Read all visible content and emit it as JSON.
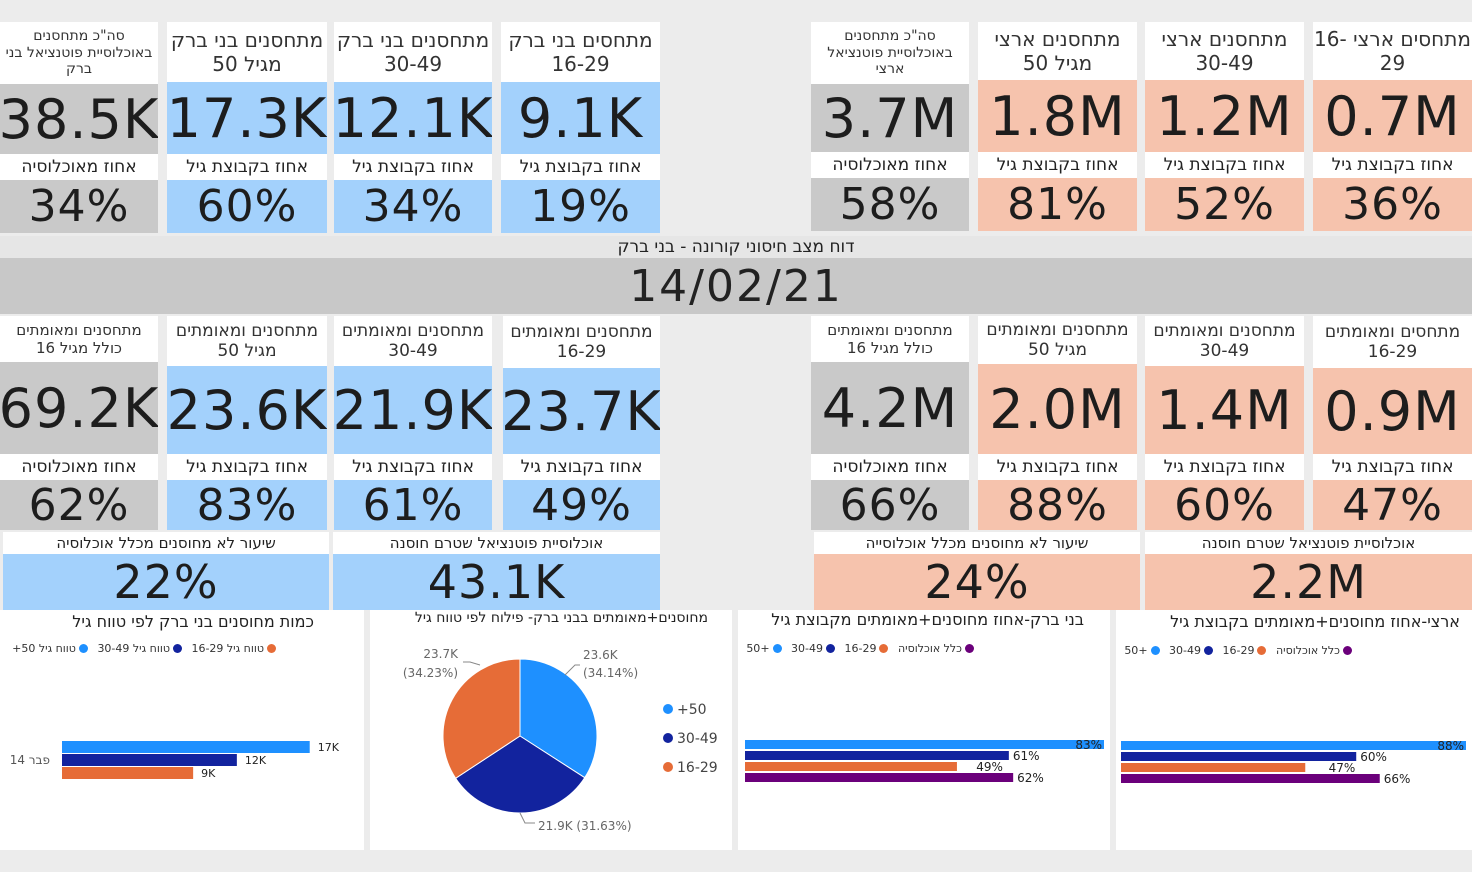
{
  "colors": {
    "blue": "#a3d1fc",
    "grey": "#c9c9c9",
    "peach": "#f6c3ad",
    "c50": "#1e90ff",
    "c30": "#12239e",
    "c16": "#e66c37",
    "call": "#6b007b"
  },
  "top": {
    "bb": [
      {
        "id": "bb-total",
        "label": "סה\"כ מתחסנים באוכלוסיית פוטנציאל בני ברק",
        "value": "38.5K",
        "sub": "אחוז מאוכלוסיה",
        "pct": "34%"
      },
      {
        "id": "bb-50",
        "label": "מתחסנים בני ברק מגיל 50",
        "value": "17.3K",
        "sub": "אחוז בקבוצת גיל",
        "pct": "60%"
      },
      {
        "id": "bb-30",
        "label": "מתחסנים בני ברק 30-49",
        "value": "12.1K",
        "sub": "אחוז בקבוצת גיל",
        "pct": "34%"
      },
      {
        "id": "bb-16",
        "label": "מתחסים בני ברק 16-29",
        "value": "9.1K",
        "sub": "אחוז בקבוצת גיל",
        "pct": "19%"
      }
    ],
    "il": [
      {
        "id": "il-total",
        "label": "סה\"כ מתחסנים באוכלוסיית פוטנציאל ארצי",
        "value": "3.7M",
        "sub": "אחוז מאוכלוסיה",
        "pct": "58%"
      },
      {
        "id": "il-50",
        "label": "מתחסנים ארצי מגיל 50",
        "value": "1.8M",
        "sub": "אחוז בקבוצת גיל",
        "pct": "81%"
      },
      {
        "id": "il-30",
        "label": "מתחסנים ארצי 30-49",
        "value": "1.2M",
        "sub": "אחוז בקבוצת גיל",
        "pct": "52%"
      },
      {
        "id": "il-16",
        "label": "מתחסים ארצי 16-29",
        "value": "0.7M",
        "sub": "אחוז בקבוצת גיל",
        "pct": "36%"
      }
    ]
  },
  "header": {
    "title": "דוח מצב חיסוני קורונה - בני ברק",
    "date": "14/02/21"
  },
  "mid": {
    "bb": [
      {
        "id": "bb-vr-total",
        "label": "מתחסנים ומאומתים כולל מגיל 16",
        "value": "69.2K",
        "sub": "אחוז מאוכלוסיה",
        "pct": "62%"
      },
      {
        "id": "bb-vr-50",
        "label": "מתחסנים ומאומתים מגיל 50",
        "value": "23.6K",
        "sub": "אחוז בקבוצת גיל",
        "pct": "83%"
      },
      {
        "id": "bb-vr-30",
        "label": "מתחסנים ומאומתים 30-49",
        "value": "21.9K",
        "sub": "אחוז בקבוצת גיל",
        "pct": "61%"
      },
      {
        "id": "bb-vr-16",
        "label": "מתחסנים ומאומתים 16-29",
        "value": "23.7K",
        "sub": "אחוז בקבוצת גיל",
        "pct": "49%"
      }
    ],
    "il": [
      {
        "id": "il-vr-total",
        "label": "מתחסנים ומאומתים כולל מגיל 16",
        "value": "4.2M",
        "sub": "אחוז מאוכלוסיה",
        "pct": "66%"
      },
      {
        "id": "il-vr-50",
        "label": "מתחסנים ומאומתים מגיל 50",
        "value": "2.0M",
        "sub": "אחוז בקבוצת גיל",
        "pct": "88%"
      },
      {
        "id": "il-vr-30",
        "label": "מתחסנים ומאומתים 30-49",
        "value": "1.4M",
        "sub": "אחוז בקבוצת גיל",
        "pct": "60%"
      },
      {
        "id": "il-vr-16",
        "label": "מתחסים ומאומתים 16-29",
        "value": "0.9M",
        "sub": "אחוז בקבוצת גיל",
        "pct": "47%"
      }
    ]
  },
  "summary": {
    "bb_unvax_label": "שיעור לא מחוסנים מכלל אוכלוסיה",
    "bb_unvax": "22%",
    "bb_potential_label": "אוכלוסיית פוטנציאל שטרם חוסנה",
    "bb_potential": "43.1K",
    "il_unvax_label": "שיעור לא מחוסנים מכלל אוכלוסייה",
    "il_unvax": "24%",
    "il_potential_label": "אוכלוסיית פוטנציאל שטרם חוסנה",
    "il_potential": "2.2M"
  },
  "chart_data": [
    {
      "type": "bar",
      "title": "כמות מחוסנים בני ברק לפי טווח גיל",
      "categories": [
        "פבר 14"
      ],
      "legend": [
        "טווח גיל 16-29",
        "טווח גיל 30-49",
        "טווח גיל 50+"
      ],
      "series": [
        {
          "name": "50+",
          "values": [
            17
          ]
        },
        {
          "name": "30-49",
          "values": [
            12
          ]
        },
        {
          "name": "16-29",
          "values": [
            9
          ]
        }
      ],
      "labels": [
        "17K",
        "12K",
        "9K"
      ],
      "xlim": [
        0,
        17.5
      ]
    },
    {
      "type": "pie",
      "title": "מחוסנים+מאומתים בבני ברק- פילוח לפי טווח גיל",
      "slices": [
        {
          "name": "+50",
          "value": 23.6,
          "label": "23.6K",
          "pct": "(34.14%)"
        },
        {
          "name": "30-49",
          "value": 21.9,
          "label": "21.9K (31.63%)",
          "pct": ""
        },
        {
          "name": "16-29",
          "value": 23.7,
          "label": "23.7K",
          "pct": "(34.23%)"
        }
      ],
      "legend": [
        "+50",
        "30-49",
        "16-29"
      ]
    },
    {
      "type": "bar",
      "title": "בני ברק-אחוז מחוסנים+מאומתים מקבוצת גיל",
      "legend": [
        "כלל אוכלוסיה",
        "16-29",
        "30-49",
        "+50"
      ],
      "series": [
        {
          "name": "+50",
          "values": [
            83
          ],
          "label": "83%"
        },
        {
          "name": "30-49",
          "values": [
            61
          ],
          "label": "61%"
        },
        {
          "name": "16-29",
          "values": [
            49
          ],
          "label": "49%"
        },
        {
          "name": "כלל אוכלוסיה",
          "values": [
            62
          ],
          "label": "62%"
        }
      ],
      "xlim": [
        0,
        83
      ]
    },
    {
      "type": "bar",
      "title": "ארצי-אחוז מחוסנים+מאומתים בקבוצת גיל",
      "legend": [
        "כלל אוכלוסיה",
        "16-29",
        "30-49",
        "+50"
      ],
      "series": [
        {
          "name": "+50",
          "values": [
            88
          ],
          "label": "88%"
        },
        {
          "name": "30-49",
          "values": [
            60
          ],
          "label": "60%"
        },
        {
          "name": "16-29",
          "values": [
            47
          ],
          "label": "47%"
        },
        {
          "name": "כלל אוכלוסיה",
          "values": [
            66
          ],
          "label": "66%"
        }
      ],
      "xlim": [
        0,
        88
      ]
    }
  ]
}
